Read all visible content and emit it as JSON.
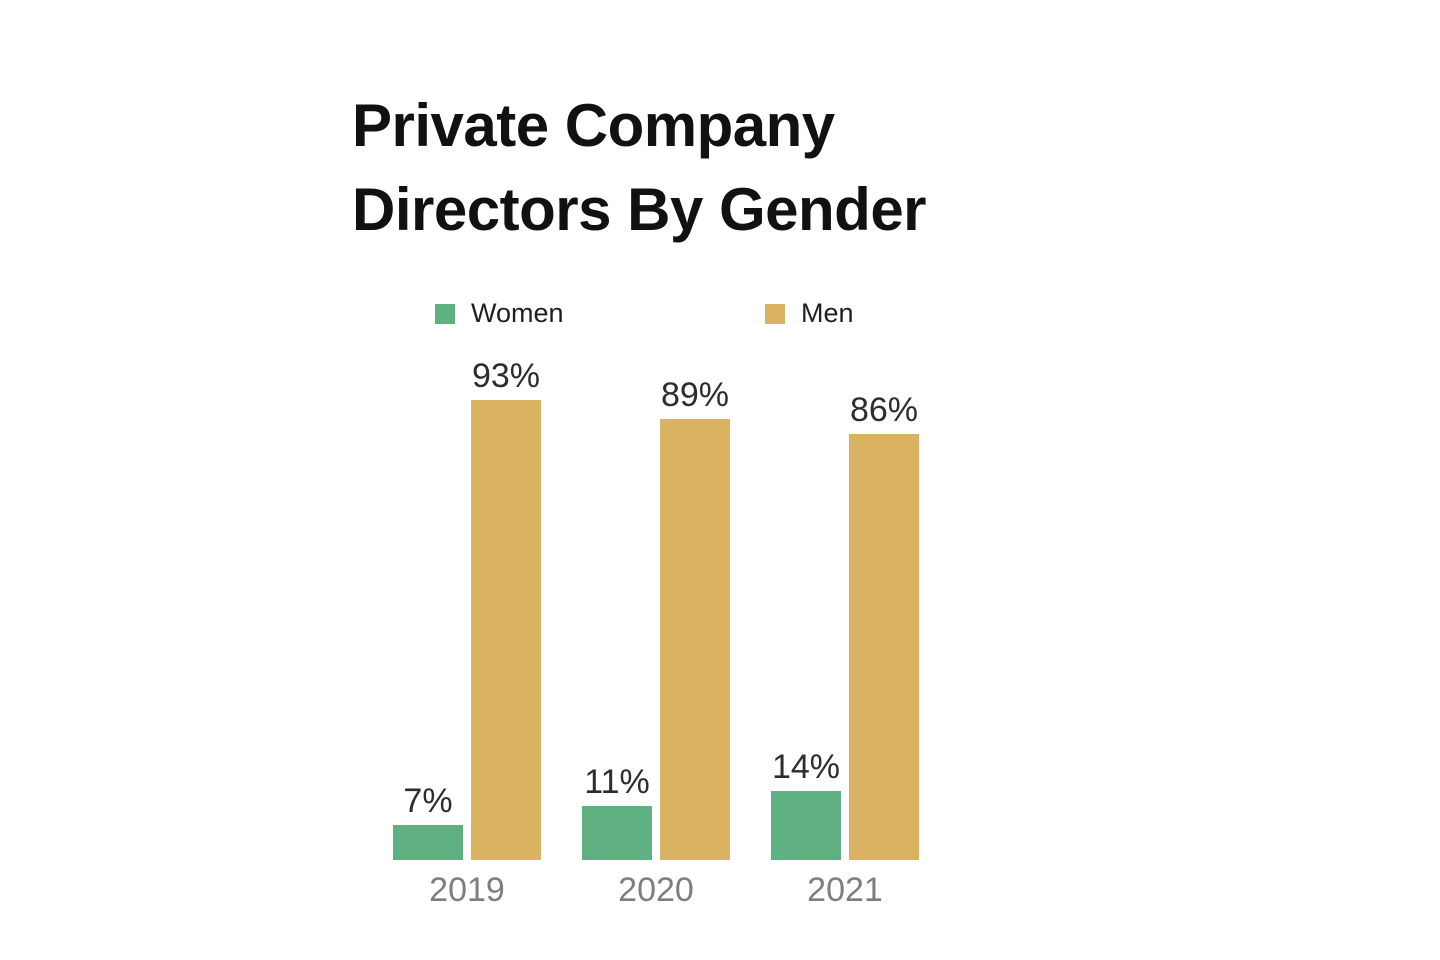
{
  "page": {
    "background_color": "#ffffff"
  },
  "chart_data": {
    "type": "bar",
    "title": "Private Company Directors By Gender",
    "categories": [
      "2019",
      "2020",
      "2021"
    ],
    "series": [
      {
        "name": "Women",
        "color": "#60b181",
        "values": [
          7,
          11,
          14
        ],
        "value_labels": [
          "7%",
          "11%",
          "14%"
        ]
      },
      {
        "name": "Men",
        "color": "#d9b262",
        "values": [
          93,
          89,
          86
        ],
        "value_labels": [
          "93%",
          "89%",
          "86%"
        ]
      }
    ],
    "xlabel": "",
    "ylabel": "",
    "ylim": [
      0,
      100
    ],
    "grid": false,
    "axis_lines": false,
    "legend_position": "top",
    "title_color": "#111111",
    "value_label_color": "#2d2d2d",
    "category_label_color": "#7e7e7e"
  }
}
